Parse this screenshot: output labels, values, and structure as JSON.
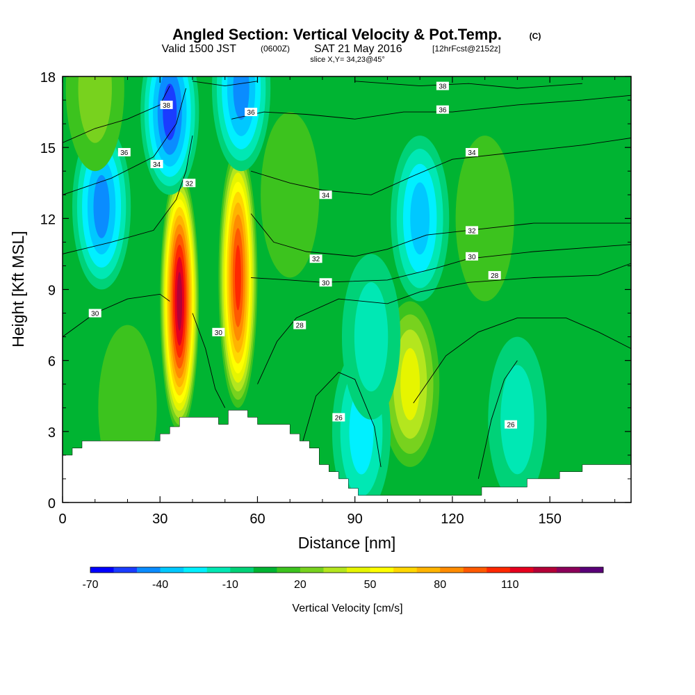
{
  "header": {
    "title": "Angled Section: Vertical Velocity & Pot.Temp.",
    "title_suffix": "(C)",
    "valid_main": "Valid 1500 JST",
    "valid_zone": "(0600Z)",
    "valid_date": "SAT 21 May 2016",
    "valid_fcst": "[12hrFcst@2152z]",
    "slice": "slice X,Y= 34,23@45°"
  },
  "chart_data": {
    "type": "heatmap",
    "title": "Angled Section: Vertical Velocity & Pot.Temp.",
    "xlabel": "Distance [nm]",
    "ylabel": "Height [Kft MSL]",
    "xlim": [
      0,
      175
    ],
    "ylim": [
      0,
      18
    ],
    "xticks": [
      "0",
      "30",
      "60",
      "90",
      "120",
      "150"
    ],
    "yticks": [
      "0",
      "3",
      "6",
      "9",
      "12",
      "15",
      "18"
    ],
    "grid": false,
    "colorbar": {
      "label": "Vertical Velocity [cm/s]",
      "ticks": [
        "-70",
        "-40",
        "-10",
        "20",
        "50",
        "80",
        "110"
      ],
      "colors": [
        "#0000ff",
        "#1a3cff",
        "#0a8cff",
        "#00c8ff",
        "#00f0ff",
        "#00e8b4",
        "#00d278",
        "#00b432",
        "#3cc31e",
        "#78d21e",
        "#b4e61e",
        "#e6f500",
        "#ffff00",
        "#ffd700",
        "#ffb400",
        "#ff8c00",
        "#ff5a00",
        "#ff2800",
        "#e6001e",
        "#b40037",
        "#8c005a",
        "#5a0078"
      ]
    },
    "terrain": [
      [
        0,
        2
      ],
      [
        3,
        2
      ],
      [
        3,
        2.3
      ],
      [
        6,
        2.3
      ],
      [
        6,
        2.6
      ],
      [
        30,
        2.6
      ],
      [
        30,
        2.9
      ],
      [
        33,
        2.9
      ],
      [
        33,
        3.2
      ],
      [
        36,
        3.2
      ],
      [
        36,
        3.6
      ],
      [
        48,
        3.6
      ],
      [
        48,
        3.3
      ],
      [
        51,
        3.3
      ],
      [
        51,
        3.9
      ],
      [
        57,
        3.9
      ],
      [
        57,
        3.6
      ],
      [
        60,
        3.6
      ],
      [
        60,
        3.3
      ],
      [
        70,
        3.3
      ],
      [
        70,
        2.9
      ],
      [
        73,
        2.9
      ],
      [
        73,
        2.6
      ],
      [
        76,
        2.6
      ],
      [
        76,
        2.3
      ],
      [
        79,
        2.3
      ],
      [
        79,
        1.6
      ],
      [
        82,
        1.6
      ],
      [
        82,
        1.3
      ],
      [
        85,
        1.3
      ],
      [
        85,
        1
      ],
      [
        88,
        1
      ],
      [
        88,
        0.6
      ],
      [
        91,
        0.6
      ],
      [
        91,
        0.3
      ],
      [
        129,
        0.3
      ],
      [
        129,
        0.65
      ],
      [
        143,
        0.65
      ],
      [
        143,
        1
      ],
      [
        153,
        1
      ],
      [
        153,
        1.3
      ],
      [
        160,
        1.3
      ],
      [
        160,
        1.6
      ],
      [
        175,
        1.6
      ]
    ],
    "vertical_velocity_features": [
      {
        "x": 36,
        "z": 8.5,
        "value": 120
      },
      {
        "x": 54,
        "z": 9.5,
        "value": 105
      },
      {
        "x": 107,
        "z": 5,
        "value": 40
      },
      {
        "x": 33,
        "z": 16.5,
        "value": -60
      },
      {
        "x": 55,
        "z": 17.5,
        "value": -45
      },
      {
        "x": 12,
        "z": 12.5,
        "value": -45
      },
      {
        "x": 110,
        "z": 12,
        "value": -40
      },
      {
        "x": 92,
        "z": 3,
        "value": -25
      },
      {
        "x": 140,
        "z": 3.5,
        "value": -20
      },
      {
        "x": 10,
        "z": 17.5,
        "value": 25
      },
      {
        "x": 70,
        "z": 13,
        "value": 15
      },
      {
        "x": 130,
        "z": 12,
        "value": 15
      },
      {
        "x": 20,
        "z": 4,
        "value": 10
      },
      {
        "x": 95,
        "z": 7,
        "value": -15
      }
    ],
    "pot_temp_contours": [
      {
        "level": "30",
        "points": [
          [
            0,
            7
          ],
          [
            10,
            8
          ],
          [
            20,
            8.6
          ],
          [
            30,
            8.8
          ],
          [
            33,
            8.5
          ]
        ]
      },
      {
        "level": "30",
        "points": [
          [
            40,
            8
          ],
          [
            44,
            6.5
          ],
          [
            47,
            4.8
          ],
          [
            50,
            4
          ]
        ]
      },
      {
        "level": "30",
        "points": [
          [
            58,
            9.5
          ],
          [
            70,
            9.4
          ],
          [
            80,
            9.3
          ],
          [
            100,
            9.4
          ],
          [
            115,
            9.9
          ],
          [
            125,
            10.3
          ],
          [
            145,
            10.6
          ],
          [
            175,
            10.9
          ]
        ]
      },
      {
        "level": "28",
        "points": [
          [
            60,
            5
          ],
          [
            66,
            6.8
          ],
          [
            72,
            7.8
          ],
          [
            85,
            8.6
          ],
          [
            100,
            8.4
          ],
          [
            110,
            8.9
          ],
          [
            125,
            9.3
          ],
          [
            145,
            9.5
          ],
          [
            165,
            9.6
          ],
          [
            175,
            10.1
          ]
        ]
      },
      {
        "level": "28",
        "points": [
          [
            74,
            2.6
          ],
          [
            78,
            4.5
          ],
          [
            85,
            5.5
          ],
          [
            90,
            5.2
          ],
          [
            96,
            3.2
          ],
          [
            98,
            1.5
          ]
        ]
      },
      {
        "level": "28",
        "points": [
          [
            108,
            4.2
          ],
          [
            118,
            6.2
          ],
          [
            128,
            7.2
          ],
          [
            140,
            7.8
          ],
          [
            155,
            7.8
          ],
          [
            165,
            7.2
          ],
          [
            175,
            6.5
          ]
        ]
      },
      {
        "level": "28",
        "points": [
          [
            128,
            1
          ],
          [
            132,
            3.5
          ],
          [
            136,
            5.2
          ],
          [
            140,
            6
          ]
        ]
      },
      {
        "level": "32",
        "points": [
          [
            0,
            10.5
          ],
          [
            15,
            11
          ],
          [
            28,
            11.5
          ],
          [
            35,
            12.8
          ],
          [
            38,
            14
          ],
          [
            40,
            15.5
          ]
        ]
      },
      {
        "level": "32",
        "points": [
          [
            58,
            12.2
          ],
          [
            65,
            11
          ],
          [
            75,
            10.6
          ],
          [
            90,
            10.4
          ],
          [
            100,
            10.7
          ],
          [
            112,
            11.3
          ],
          [
            125,
            11.5
          ],
          [
            145,
            11.8
          ],
          [
            175,
            11.8
          ]
        ]
      },
      {
        "level": "34",
        "points": [
          [
            0,
            13
          ],
          [
            15,
            13.7
          ],
          [
            28,
            14.6
          ],
          [
            35,
            16
          ],
          [
            38,
            17.5
          ]
        ]
      },
      {
        "level": "34",
        "points": [
          [
            58,
            14
          ],
          [
            70,
            13.5
          ],
          [
            80,
            13.2
          ],
          [
            95,
            13
          ],
          [
            108,
            13.8
          ],
          [
            120,
            14.5
          ],
          [
            140,
            14.8
          ],
          [
            160,
            15.1
          ],
          [
            175,
            15.4
          ]
        ]
      },
      {
        "level": "36",
        "points": [
          [
            0,
            15.2
          ],
          [
            10,
            15.8
          ],
          [
            20,
            16.2
          ],
          [
            30,
            16.8
          ],
          [
            33,
            17.6
          ]
        ]
      },
      {
        "level": "36",
        "points": [
          [
            52,
            16.2
          ],
          [
            62,
            16.5
          ],
          [
            75,
            16.4
          ],
          [
            90,
            16.2
          ],
          [
            105,
            16.5
          ],
          [
            120,
            16.5
          ],
          [
            140,
            16.8
          ],
          [
            160,
            17
          ],
          [
            175,
            17.2
          ]
        ]
      },
      {
        "level": "38",
        "points": [
          [
            40,
            17.8
          ],
          [
            50,
            17.6
          ],
          [
            60,
            17.8
          ]
        ]
      },
      {
        "level": "38",
        "points": [
          [
            90,
            17.8
          ],
          [
            110,
            17.6
          ],
          [
            125,
            17.7
          ],
          [
            140,
            17.5
          ],
          [
            160,
            17.7
          ]
        ]
      }
    ],
    "contour_labels": [
      {
        "text": "38",
        "x": 32,
        "z": 16.8
      },
      {
        "text": "36",
        "x": 19,
        "z": 14.8
      },
      {
        "text": "34",
        "x": 29,
        "z": 14.3
      },
      {
        "text": "32",
        "x": 39,
        "z": 13.5
      },
      {
        "text": "36",
        "x": 58,
        "z": 16.5
      },
      {
        "text": "34",
        "x": 81,
        "z": 13.0
      },
      {
        "text": "32",
        "x": 78,
        "z": 10.3
      },
      {
        "text": "30",
        "x": 81,
        "z": 9.3
      },
      {
        "text": "28",
        "x": 73,
        "z": 7.5
      },
      {
        "text": "30",
        "x": 10,
        "z": 8.0
      },
      {
        "text": "30",
        "x": 48,
        "z": 7.2
      },
      {
        "text": "26",
        "x": 85,
        "z": 3.6
      },
      {
        "text": "38",
        "x": 117,
        "z": 17.6
      },
      {
        "text": "36",
        "x": 117,
        "z": 16.6
      },
      {
        "text": "34",
        "x": 126,
        "z": 14.8
      },
      {
        "text": "32",
        "x": 126,
        "z": 11.5
      },
      {
        "text": "30",
        "x": 126,
        "z": 10.4
      },
      {
        "text": "28",
        "x": 133,
        "z": 9.6
      },
      {
        "text": "26",
        "x": 138,
        "z": 3.3
      }
    ]
  }
}
